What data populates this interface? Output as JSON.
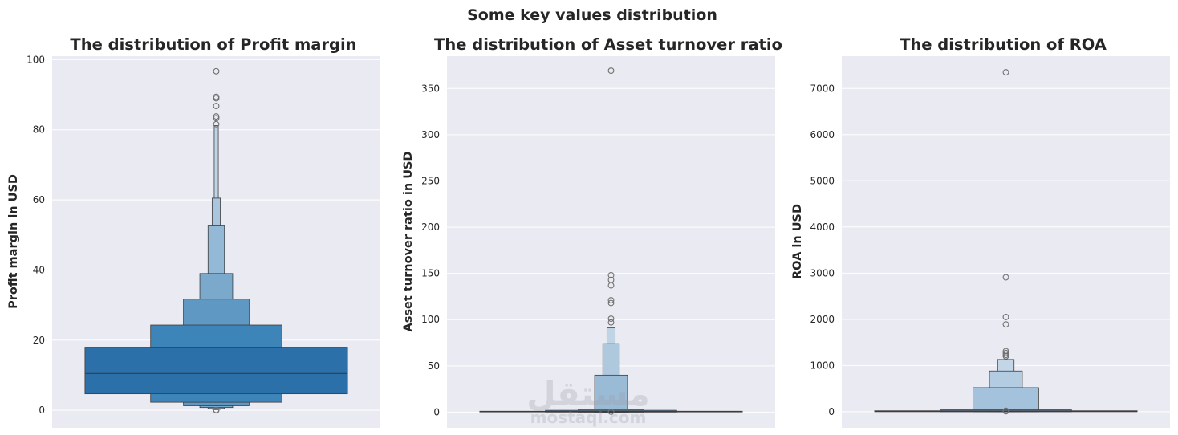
{
  "suptitle": "Some key values distribution",
  "watermark": {
    "arabic": "مستقل",
    "latin": "mostaql.com"
  },
  "style": {
    "axes_bg": "#eaeaf2",
    "grid": "#ffffff",
    "edge": "#3d3d3d",
    "palette_base": "#2b70a8"
  },
  "chart_data": [
    {
      "type": "boxen",
      "title": "The distribution of Profit margin",
      "ylabel": "Profit margin  in USD",
      "ylim": [
        -5,
        101
      ],
      "yticks": [
        0,
        20,
        40,
        60,
        80,
        100
      ],
      "grid": true,
      "median": 10.5,
      "boxes": [
        {
          "low": 4.7,
          "high": 18.0,
          "color": "#2b70a8"
        },
        {
          "low": 2.3,
          "high": 24.3,
          "color": "#3d84b9"
        },
        {
          "low": 1.3,
          "high": 31.7,
          "color": "#5e98c3"
        },
        {
          "low": 0.8,
          "high": 39.0,
          "color": "#7aa9cc"
        },
        {
          "low": 0.5,
          "high": 52.8,
          "color": "#93b9d6"
        },
        {
          "low": 0.3,
          "high": 60.5,
          "color": "#a9c6dd"
        },
        {
          "low": 0.2,
          "high": 81.2,
          "color": "#bfd4e6"
        }
      ],
      "outliers": [
        96.7,
        89.4,
        89.0,
        86.8,
        83.8,
        83.3,
        81.6,
        0.0,
        0.1
      ]
    },
    {
      "type": "boxen",
      "title": "The distribution of Asset turnover ratio",
      "ylabel": "Asset turnover ratio  in USD",
      "ylim": [
        -17,
        385
      ],
      "yticks": [
        0,
        50,
        100,
        150,
        200,
        250,
        300,
        350
      ],
      "grid": true,
      "median": 0.5,
      "boxes": [
        {
          "low": 0.2,
          "high": 1.0,
          "color": "#5b8fb8"
        },
        {
          "low": 0.1,
          "high": 2.0,
          "color": "#6e9dc2"
        },
        {
          "low": 0.05,
          "high": 3.0,
          "color": "#83aacb"
        },
        {
          "low": 0.02,
          "high": 40.0,
          "color": "#9abbd6"
        },
        {
          "low": 0.01,
          "high": 74.0,
          "color": "#aec8de"
        },
        {
          "low": 0.0,
          "high": 91.0,
          "color": "#c0d4e6"
        }
      ],
      "outliers": [
        369.3,
        148.0,
        143.0,
        137.0,
        121.0,
        118.0,
        101.0,
        97.0,
        0.5
      ]
    },
    {
      "type": "boxen",
      "title": "The distribution of ROA",
      "ylabel": "ROA  in USD",
      "ylim": [
        -350,
        7700
      ],
      "yticks": [
        0,
        1000,
        2000,
        3000,
        4000,
        5000,
        6000,
        7000
      ],
      "grid": true,
      "median": 5,
      "boxes": [
        {
          "low": 1,
          "high": 20,
          "color": "#5b8fb8"
        },
        {
          "low": 0.5,
          "high": 40,
          "color": "#7ba7ca"
        },
        {
          "low": 0.2,
          "high": 520,
          "color": "#a4c2db"
        },
        {
          "low": 0.1,
          "high": 880,
          "color": "#b3cce1"
        },
        {
          "low": 0.05,
          "high": 1130,
          "color": "#c3d6e7"
        }
      ],
      "outliers": [
        7350,
        2910,
        2050,
        1890,
        1310,
        1270,
        1230,
        1200,
        20,
        10
      ]
    }
  ]
}
